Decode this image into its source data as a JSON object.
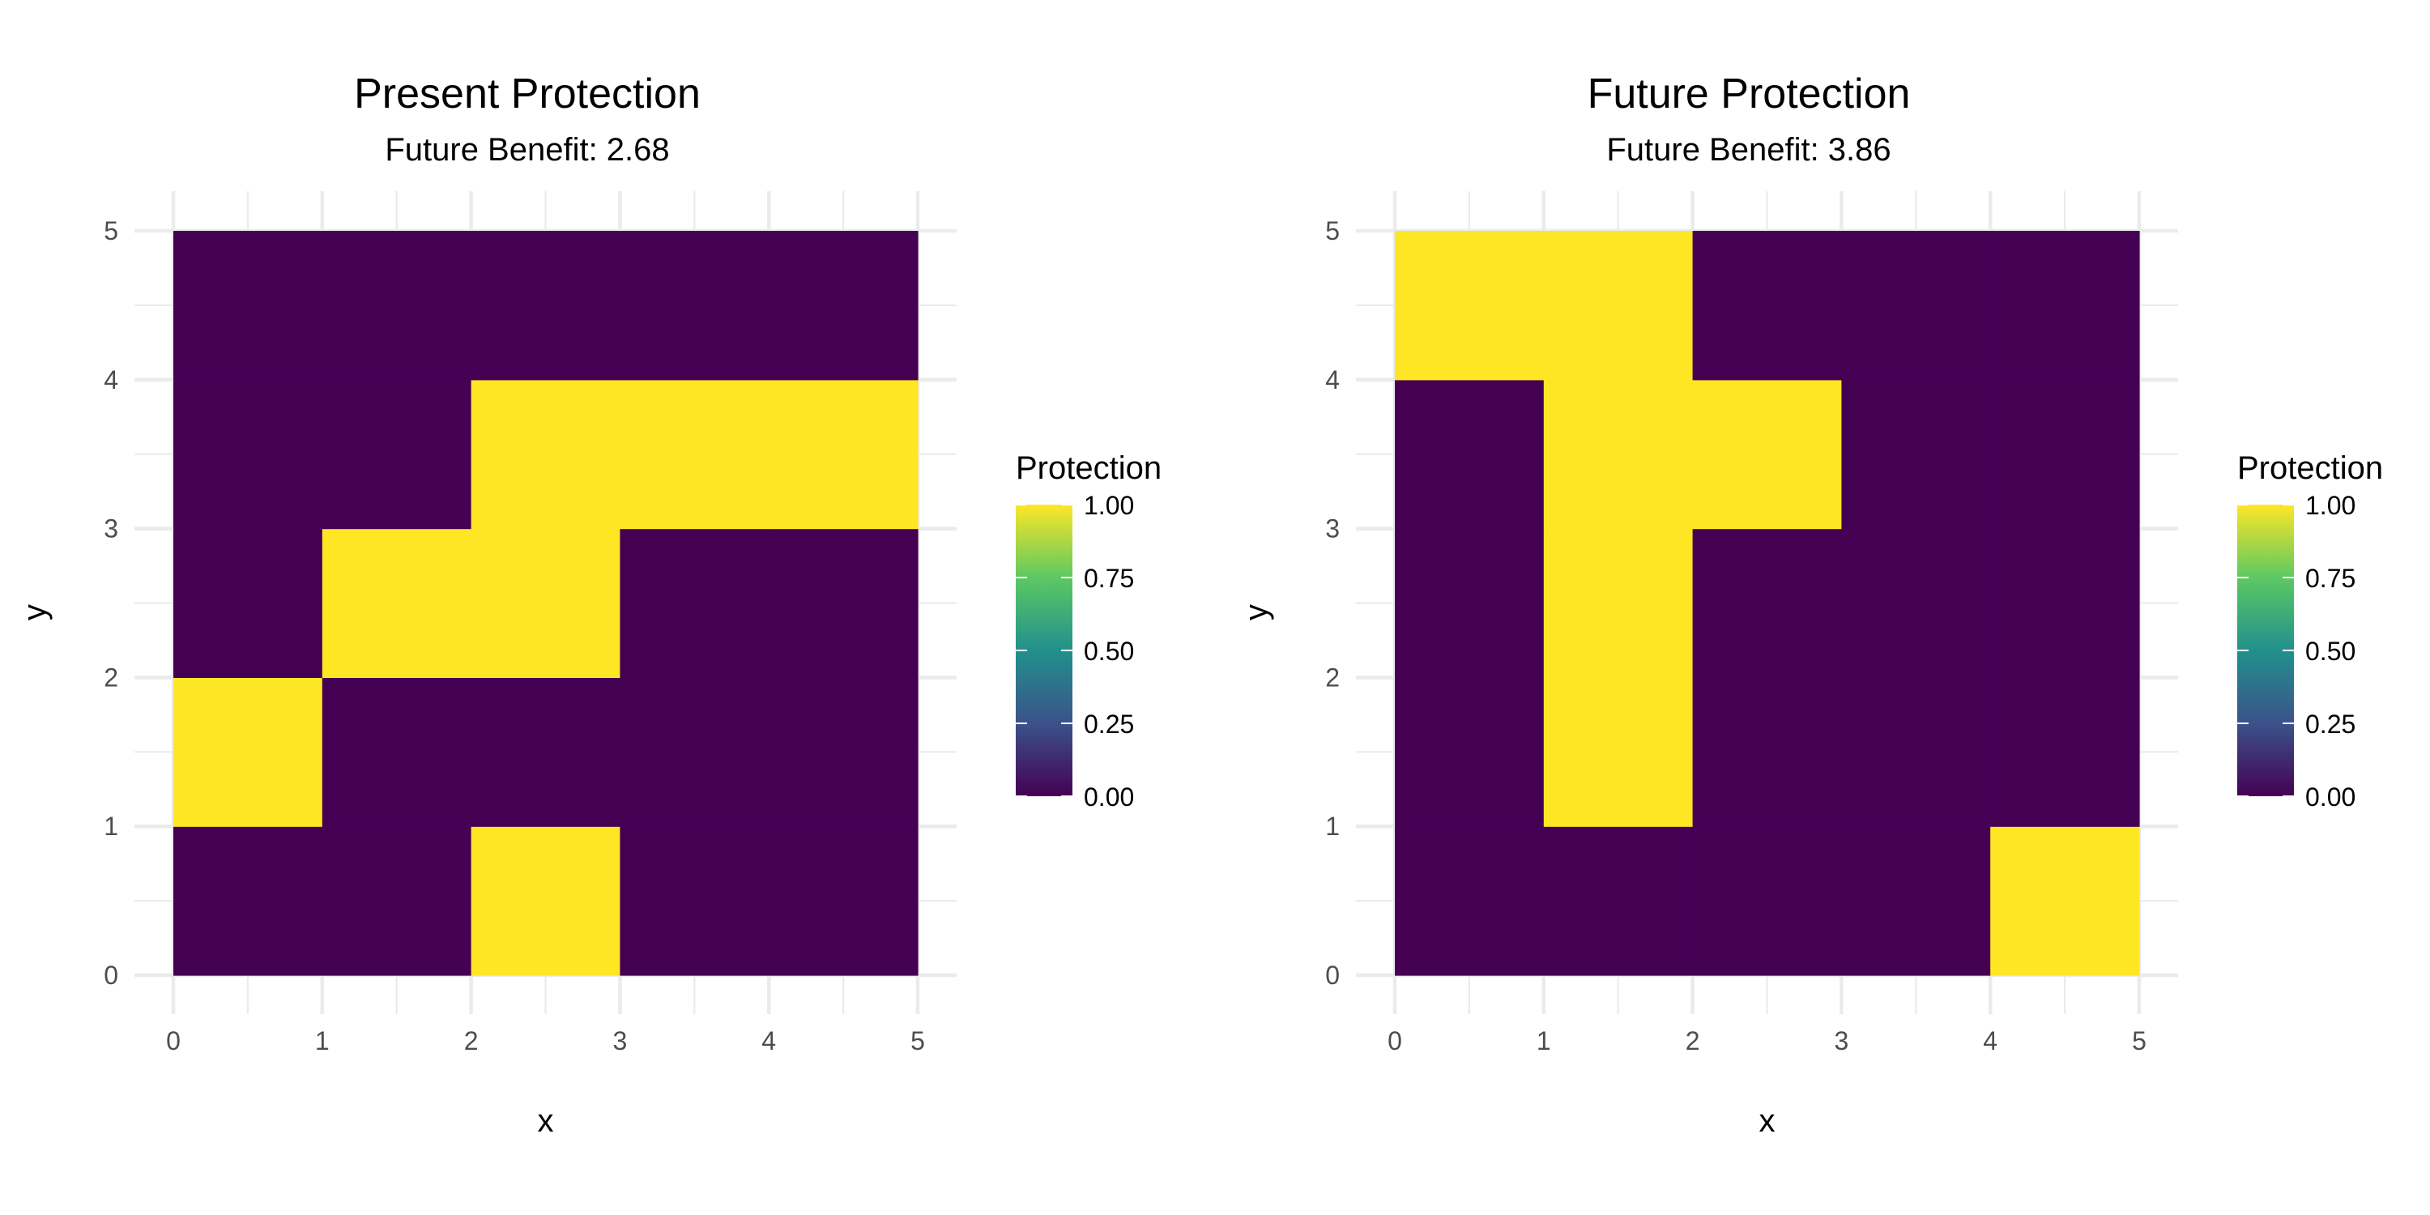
{
  "chart_data": [
    {
      "type": "heatmap",
      "title": "Present Protection",
      "subtitle": "Future Benefit: 2.68",
      "xlabel": "x",
      "ylabel": "y",
      "xlim": [
        0,
        5
      ],
      "ylim": [
        0,
        5
      ],
      "x_ticks": [
        "0",
        "1",
        "2",
        "3",
        "4",
        "5"
      ],
      "y_ticks": [
        "0",
        "1",
        "2",
        "3",
        "4",
        "5"
      ],
      "grid": true,
      "legend": {
        "title": "Protection",
        "position": "right",
        "labels": [
          "0.00",
          "0.25",
          "0.50",
          "0.75",
          "1.00"
        ],
        "range": [
          0,
          1
        ]
      },
      "cells": [
        {
          "x": 0,
          "y": 0,
          "value": 0
        },
        {
          "x": 1,
          "y": 0,
          "value": 0
        },
        {
          "x": 2,
          "y": 0,
          "value": 1
        },
        {
          "x": 3,
          "y": 0,
          "value": 0
        },
        {
          "x": 4,
          "y": 0,
          "value": 0
        },
        {
          "x": 0,
          "y": 1,
          "value": 1
        },
        {
          "x": 1,
          "y": 1,
          "value": 0
        },
        {
          "x": 2,
          "y": 1,
          "value": 0
        },
        {
          "x": 3,
          "y": 1,
          "value": 0
        },
        {
          "x": 4,
          "y": 1,
          "value": 0
        },
        {
          "x": 0,
          "y": 2,
          "value": 0
        },
        {
          "x": 1,
          "y": 2,
          "value": 1
        },
        {
          "x": 2,
          "y": 2,
          "value": 1
        },
        {
          "x": 3,
          "y": 2,
          "value": 0
        },
        {
          "x": 4,
          "y": 2,
          "value": 0
        },
        {
          "x": 0,
          "y": 3,
          "value": 0
        },
        {
          "x": 1,
          "y": 3,
          "value": 0
        },
        {
          "x": 2,
          "y": 3,
          "value": 1
        },
        {
          "x": 3,
          "y": 3,
          "value": 1
        },
        {
          "x": 4,
          "y": 3,
          "value": 1
        },
        {
          "x": 0,
          "y": 4,
          "value": 0
        },
        {
          "x": 1,
          "y": 4,
          "value": 0
        },
        {
          "x": 2,
          "y": 4,
          "value": 0
        },
        {
          "x": 3,
          "y": 4,
          "value": 0
        },
        {
          "x": 4,
          "y": 4,
          "value": 0
        }
      ]
    },
    {
      "type": "heatmap",
      "title": "Future Protection",
      "subtitle": "Future Benefit: 3.86",
      "xlabel": "x",
      "ylabel": "y",
      "xlim": [
        0,
        5
      ],
      "ylim": [
        0,
        5
      ],
      "x_ticks": [
        "0",
        "1",
        "2",
        "3",
        "4",
        "5"
      ],
      "y_ticks": [
        "0",
        "1",
        "2",
        "3",
        "4",
        "5"
      ],
      "grid": true,
      "legend": {
        "title": "Protection",
        "position": "right",
        "labels": [
          "0.00",
          "0.25",
          "0.50",
          "0.75",
          "1.00"
        ],
        "range": [
          0,
          1
        ]
      },
      "cells": [
        {
          "x": 0,
          "y": 0,
          "value": 0
        },
        {
          "x": 1,
          "y": 0,
          "value": 0
        },
        {
          "x": 2,
          "y": 0,
          "value": 0
        },
        {
          "x": 3,
          "y": 0,
          "value": 0
        },
        {
          "x": 4,
          "y": 0,
          "value": 1
        },
        {
          "x": 0,
          "y": 1,
          "value": 0
        },
        {
          "x": 1,
          "y": 1,
          "value": 1
        },
        {
          "x": 2,
          "y": 1,
          "value": 0
        },
        {
          "x": 3,
          "y": 1,
          "value": 0
        },
        {
          "x": 4,
          "y": 1,
          "value": 0
        },
        {
          "x": 0,
          "y": 2,
          "value": 0
        },
        {
          "x": 1,
          "y": 2,
          "value": 1
        },
        {
          "x": 2,
          "y": 2,
          "value": 0
        },
        {
          "x": 3,
          "y": 2,
          "value": 0
        },
        {
          "x": 4,
          "y": 2,
          "value": 0
        },
        {
          "x": 0,
          "y": 3,
          "value": 0
        },
        {
          "x": 1,
          "y": 3,
          "value": 1
        },
        {
          "x": 2,
          "y": 3,
          "value": 1
        },
        {
          "x": 3,
          "y": 3,
          "value": 0
        },
        {
          "x": 4,
          "y": 3,
          "value": 0
        },
        {
          "x": 0,
          "y": 4,
          "value": 1
        },
        {
          "x": 1,
          "y": 4,
          "value": 1
        },
        {
          "x": 2,
          "y": 4,
          "value": 0
        },
        {
          "x": 3,
          "y": 4,
          "value": 0
        },
        {
          "x": 4,
          "y": 4,
          "value": 0
        }
      ]
    }
  ],
  "colors": {
    "low": "#440154",
    "high": "#FDE725",
    "gradient": [
      "#440154",
      "#3B528B",
      "#21908C",
      "#5DC863",
      "#FDE725"
    ],
    "grid": "#EBEBEB",
    "tick_text": "#4D4D4D"
  }
}
